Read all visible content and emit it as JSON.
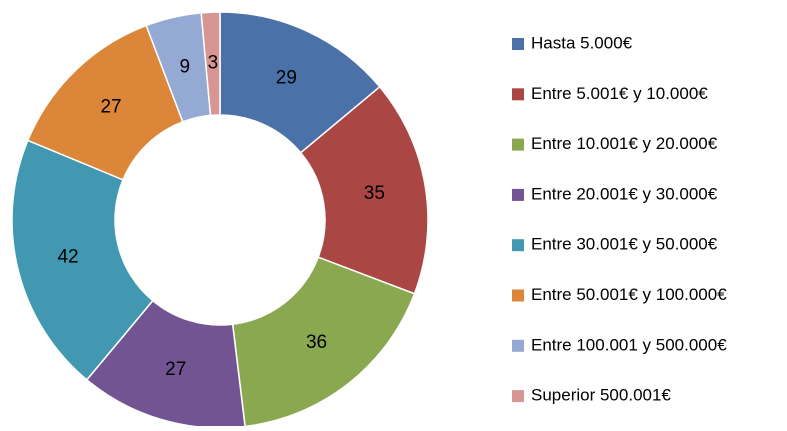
{
  "chart_data": {
    "type": "donut",
    "categories": [
      "Hasta 5.000€",
      "Entre 5.001€ y 10.000€",
      "Entre 10.001€ y 20.000€",
      "Entre 20.001€ y 30.000€",
      "Entre 30.001€ y 50.000€",
      "Entre 50.001€ y 100.000€",
      "Entre 100.001 y 500.000€",
      "Superior 500.001€"
    ],
    "values": [
      29,
      35,
      36,
      27,
      42,
      27,
      9,
      3
    ],
    "colors": [
      "#4a72a8",
      "#aa4644",
      "#8aa84f",
      "#735492",
      "#4298b0",
      "#dc8639",
      "#94a9d4",
      "#d79594"
    ],
    "legend": "right"
  }
}
